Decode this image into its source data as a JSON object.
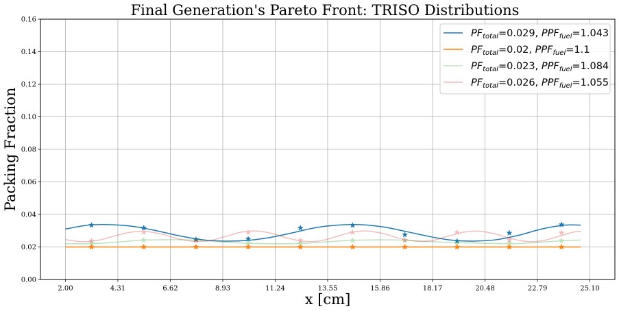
{
  "chart_data": {
    "type": "line",
    "title": "Final Generation's Pareto Front: TRISO Distributions",
    "xlabel": "x [cm]",
    "ylabel": "Packing Fraction",
    "xlim": [
      0.9,
      26.2
    ],
    "ylim": [
      0,
      0.16
    ],
    "x_ticks": [
      "2.00",
      "4.31",
      "6.62",
      "8.93",
      "11.24",
      "13.55",
      "15.86",
      "18.17",
      "20.48",
      "22.79",
      "25.10"
    ],
    "y_ticks": [
      "0.00",
      "0.02",
      "0.04",
      "0.06",
      "0.08",
      "0.10",
      "0.12",
      "0.14",
      "0.16"
    ],
    "grid": true,
    "legend_position": "top-right",
    "marker_x": [
      3.15,
      5.45,
      7.75,
      10.05,
      12.35,
      14.65,
      16.95,
      19.25,
      21.55,
      23.85
    ],
    "series": [
      {
        "name": "PF_total=0.029, PPF_fuel=1.043",
        "legend": {
          "pf_value": "=0.029, ",
          "ppf_value": "=1.043"
        },
        "color": "#1f77b4",
        "opacity": 1.0,
        "x": [
          2.0,
          3.0,
          4.0,
          5.0,
          6.0,
          7.0,
          8.0,
          9.0,
          10.0,
          11.0,
          12.0,
          13.0,
          14.0,
          15.0,
          16.0,
          17.0,
          18.0,
          19.0,
          20.0,
          21.0,
          22.0,
          23.0,
          24.0,
          24.7
        ],
        "y": [
          0.031,
          0.0334,
          0.0337,
          0.0326,
          0.03,
          0.0269,
          0.0245,
          0.0236,
          0.024,
          0.0258,
          0.0287,
          0.0318,
          0.0334,
          0.0337,
          0.0323,
          0.0295,
          0.0265,
          0.0242,
          0.0236,
          0.0245,
          0.0273,
          0.0311,
          0.0334,
          0.0334
        ],
        "marker_y": [
          0.0334,
          0.0317,
          0.0246,
          0.0249,
          0.0317,
          0.0333,
          0.0275,
          0.0236,
          0.0286,
          0.0337
        ]
      },
      {
        "name": "PF_total=0.02, PPF_fuel=1.1",
        "legend": {
          "pf_value": "=0.02, ",
          "ppf_value": "=1.1"
        },
        "color": "#ff7f0e",
        "opacity": 1.0,
        "x": [
          2.0,
          24.7
        ],
        "y": [
          0.02,
          0.02
        ],
        "marker_y": [
          0.02,
          0.02,
          0.02,
          0.02,
          0.02,
          0.02,
          0.02,
          0.02,
          0.02,
          0.02
        ]
      },
      {
        "name": "PF_total=0.023, PPF_fuel=1.084",
        "legend": {
          "pf_value": "=0.023, ",
          "ppf_value": "=1.084"
        },
        "color": "#2ca02c",
        "opacity": 0.3,
        "x": [
          2.0,
          3.5,
          5.5,
          7.5,
          9.5,
          11.0,
          12.5,
          14.5,
          16.5,
          18.5,
          20.5,
          22.0,
          23.5,
          24.7
        ],
        "y": [
          0.022,
          0.0222,
          0.0242,
          0.0243,
          0.0225,
          0.022,
          0.0222,
          0.024,
          0.0243,
          0.023,
          0.0222,
          0.0221,
          0.0235,
          0.0243
        ],
        "marker_y": [
          0.0223,
          0.0242,
          0.0242,
          0.0224,
          0.0223,
          0.024,
          0.0242,
          0.0226,
          0.0223,
          0.0239
        ]
      },
      {
        "name": "PF_total=0.026, PPF_fuel=1.055",
        "legend": {
          "pf_value": "=0.026, ",
          "ppf_value": "=1.055"
        },
        "color": "#d62728",
        "opacity": 0.3,
        "x": [
          2.0,
          2.7,
          3.4,
          4.1,
          4.8,
          5.5,
          6.2,
          6.9,
          7.6,
          8.3,
          9.0,
          9.7,
          10.4,
          11.1,
          11.8,
          12.5,
          13.2,
          13.9,
          14.6,
          15.3,
          16.0,
          16.7,
          17.4,
          18.1,
          18.8,
          19.5,
          20.2,
          20.9,
          21.6,
          22.3,
          23.0,
          23.7,
          24.4,
          24.7
        ],
        "y": [
          0.0245,
          0.0233,
          0.024,
          0.0265,
          0.0289,
          0.0296,
          0.028,
          0.0253,
          0.0235,
          0.0238,
          0.0262,
          0.029,
          0.0298,
          0.0283,
          0.0254,
          0.0235,
          0.0237,
          0.0262,
          0.029,
          0.0298,
          0.0282,
          0.0254,
          0.0236,
          0.0238,
          0.0264,
          0.029,
          0.0297,
          0.0281,
          0.0253,
          0.0234,
          0.0238,
          0.0264,
          0.0292,
          0.0296
        ],
        "marker_y": [
          0.0238,
          0.029,
          0.0238,
          0.0289,
          0.024,
          0.029,
          0.0241,
          0.0289,
          0.0242,
          0.0287
        ]
      }
    ]
  }
}
